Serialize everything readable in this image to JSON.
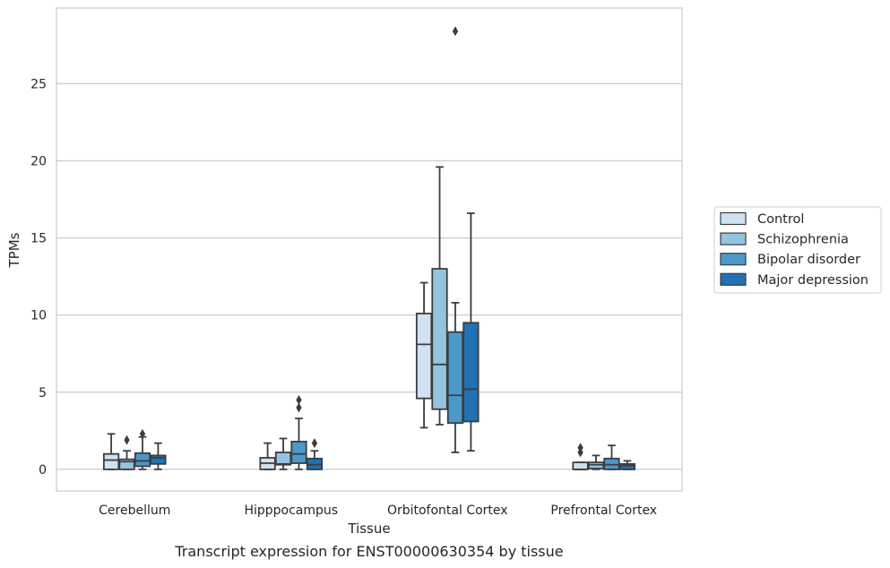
{
  "chart_data": {
    "type": "box",
    "title": "",
    "caption": "Transcript expression for ENST00000630354 by tissue",
    "xlabel": "Tissue",
    "ylabel": "TPMs",
    "ylim": [
      -1.4,
      29.9
    ],
    "yticks": [
      0,
      5,
      10,
      15,
      20,
      25
    ],
    "grid": "horizontal",
    "legend_position": "right",
    "categories": [
      "Cerebellum",
      "Hipppocampus",
      "Orbitofontal Cortex",
      "Prefrontal Cortex"
    ],
    "series": [
      {
        "name": "Control",
        "color": "#d0e1f2",
        "boxes": [
          {
            "whisker_low": 0,
            "q1": 0,
            "median": 0.6,
            "q3": 1.0,
            "whisker_high": 2.3,
            "outliers": []
          },
          {
            "whisker_low": 0,
            "q1": 0,
            "median": 0.4,
            "q3": 0.75,
            "whisker_high": 1.7,
            "outliers": []
          },
          {
            "whisker_low": 2.7,
            "q1": 4.6,
            "median": 8.1,
            "q3": 10.1,
            "whisker_high": 12.1,
            "outliers": []
          },
          {
            "whisker_low": 0,
            "q1": 0,
            "median": 0,
            "q3": 0.45,
            "whisker_high": 0.45,
            "outliers": [
              1.1,
              1.4
            ]
          }
        ]
      },
      {
        "name": "Schizophrenia",
        "color": "#94c4df",
        "boxes": [
          {
            "whisker_low": 0,
            "q1": 0,
            "median": 0.5,
            "q3": 0.65,
            "whisker_high": 1.2,
            "outliers": [
              1.9
            ]
          },
          {
            "whisker_low": 0,
            "q1": 0.3,
            "median": 0.35,
            "q3": 1.1,
            "whisker_high": 2.0,
            "outliers": []
          },
          {
            "whisker_low": 2.9,
            "q1": 3.9,
            "median": 6.8,
            "q3": 13.0,
            "whisker_high": 19.6,
            "outliers": []
          },
          {
            "whisker_low": 0,
            "q1": 0.05,
            "median": 0.3,
            "q3": 0.45,
            "whisker_high": 0.9,
            "outliers": []
          }
        ]
      },
      {
        "name": "Bipolar disorder",
        "color": "#4b98c9",
        "boxes": [
          {
            "whisker_low": 0,
            "q1": 0.2,
            "median": 0.55,
            "q3": 1.05,
            "whisker_high": 2.1,
            "outliers": [
              2.3
            ]
          },
          {
            "whisker_low": 0,
            "q1": 0.4,
            "median": 1.0,
            "q3": 1.8,
            "whisker_high": 3.3,
            "outliers": [
              4.5,
              4.0
            ]
          },
          {
            "whisker_low": 1.1,
            "q1": 3.0,
            "median": 4.8,
            "q3": 8.9,
            "whisker_high": 10.8,
            "outliers": [
              28.4
            ]
          },
          {
            "whisker_low": 0,
            "q1": 0,
            "median": 0.3,
            "q3": 0.7,
            "whisker_high": 1.55,
            "outliers": []
          }
        ]
      },
      {
        "name": "Major depression",
        "color": "#2171b5",
        "boxes": [
          {
            "whisker_low": 0,
            "q1": 0.35,
            "median": 0.75,
            "q3": 0.9,
            "whisker_high": 1.7,
            "outliers": []
          },
          {
            "whisker_low": 0,
            "q1": 0,
            "median": 0.3,
            "q3": 0.7,
            "whisker_high": 1.2,
            "outliers": [
              1.7
            ]
          },
          {
            "whisker_low": 1.2,
            "q1": 3.1,
            "median": 5.2,
            "q3": 9.5,
            "whisker_high": 16.6,
            "outliers": []
          },
          {
            "whisker_low": 0,
            "q1": 0,
            "median": 0.25,
            "q3": 0.35,
            "whisker_high": 0.55,
            "outliers": []
          }
        ]
      }
    ]
  }
}
